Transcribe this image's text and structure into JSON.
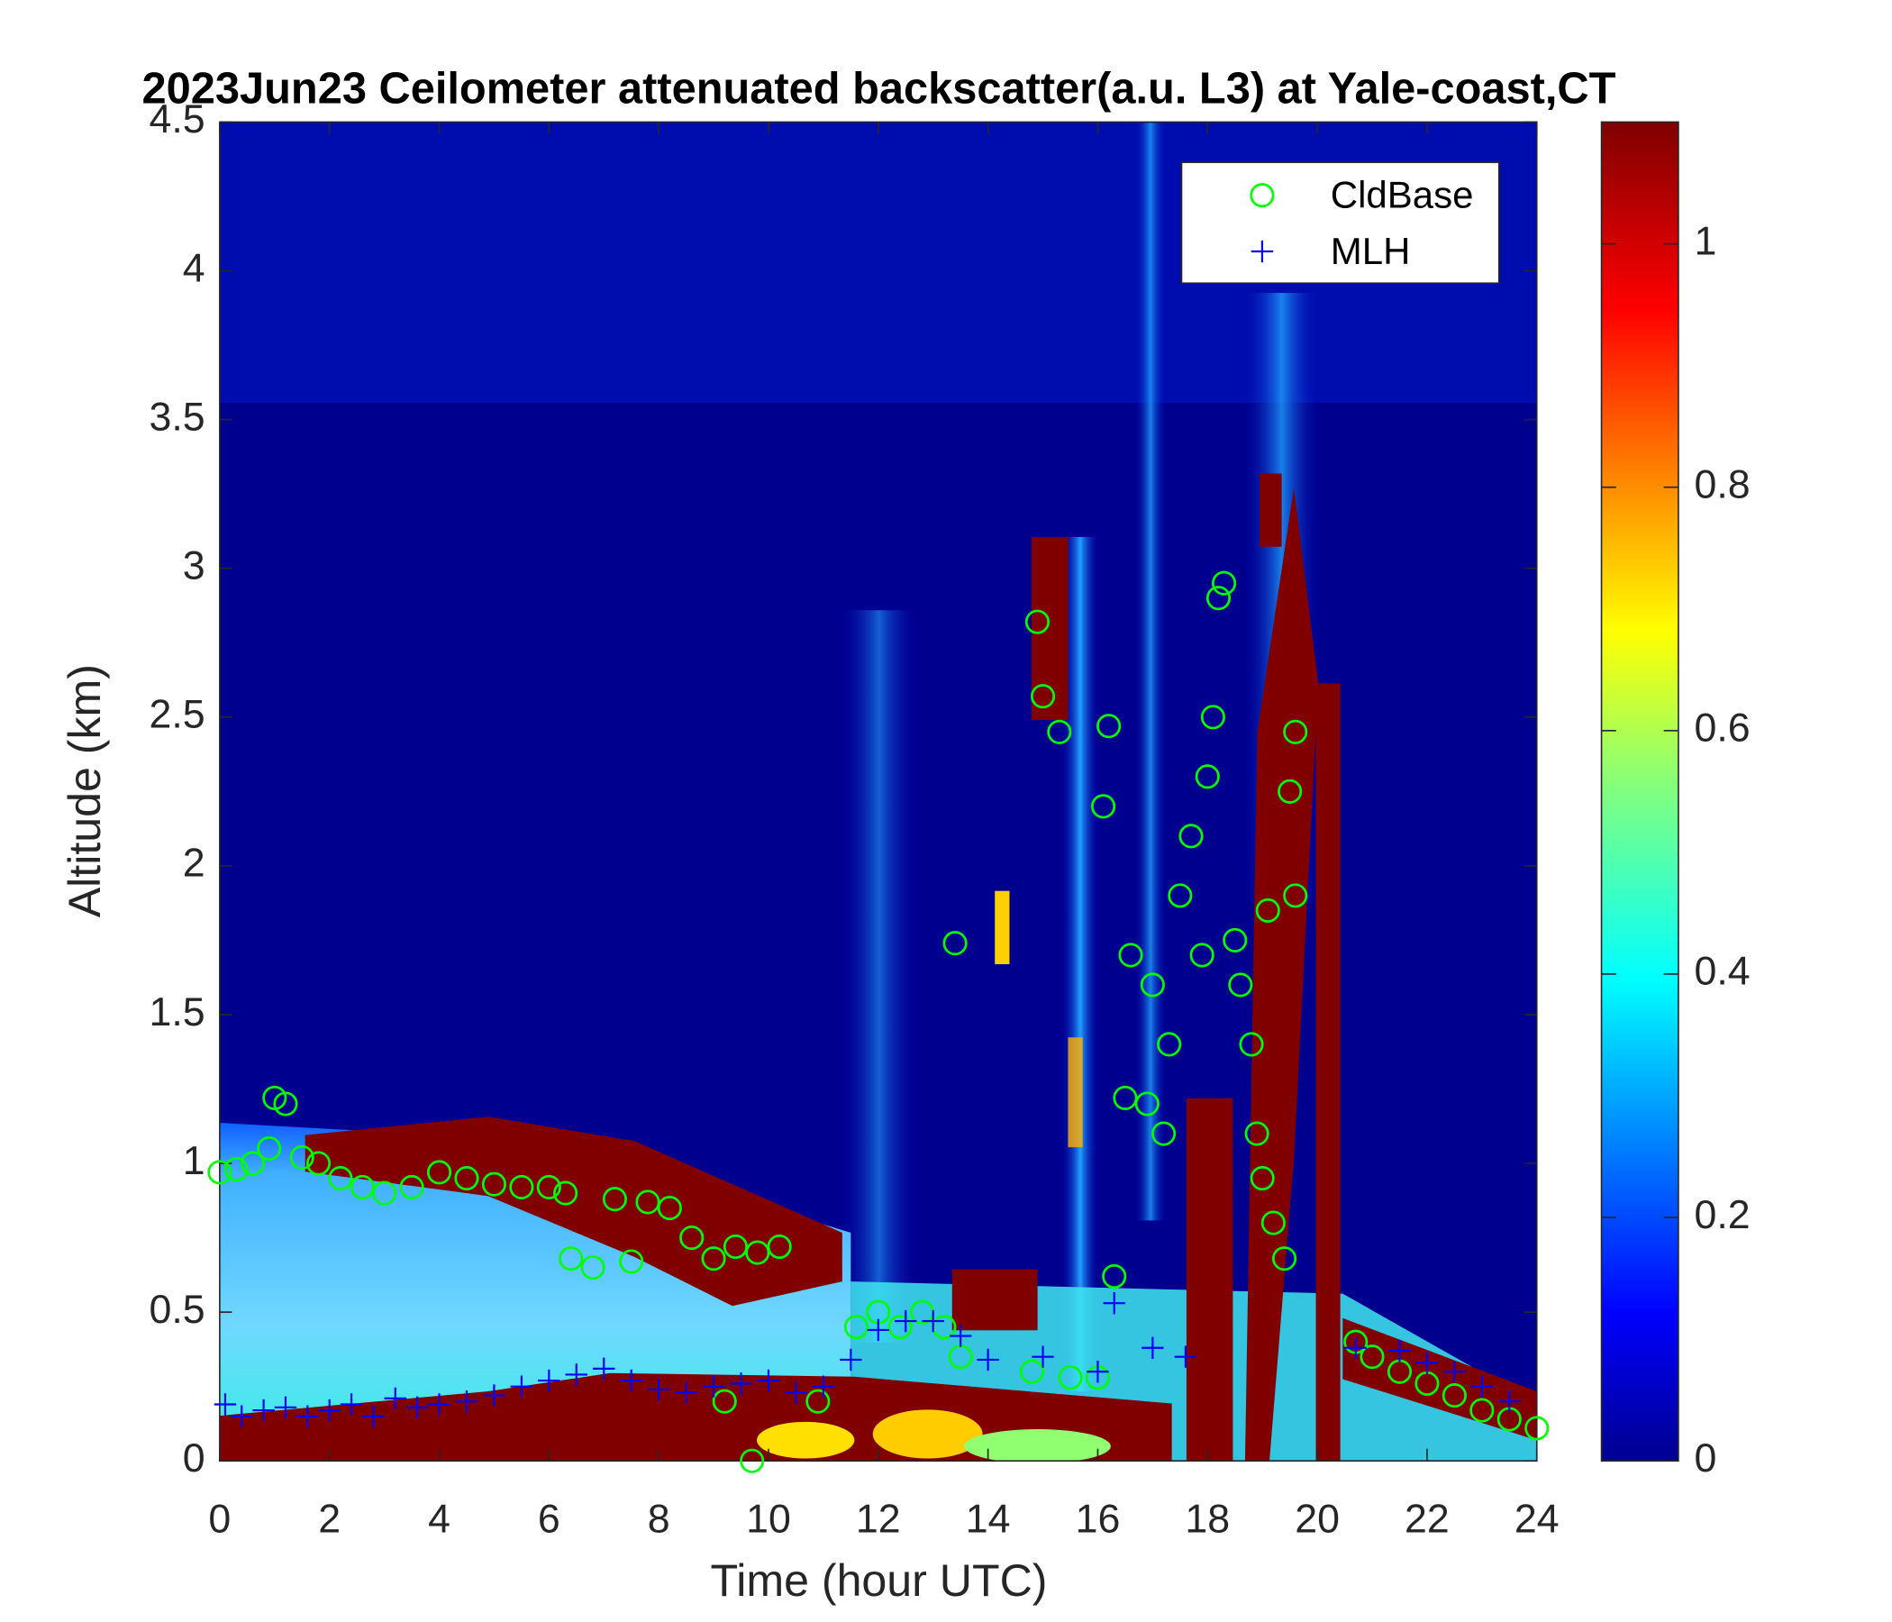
{
  "chart_data": {
    "type": "scatter",
    "title": "2023Jun23 Ceilometer attenuated backscatter(a.u. L3) at Yale-coast,CT",
    "xlabel": "Time (hour UTC)",
    "ylabel": "Altitude (km)",
    "xlim": [
      0,
      24
    ],
    "xticks": [
      0,
      2,
      4,
      6,
      8,
      10,
      12,
      14,
      16,
      18,
      20,
      22,
      24
    ],
    "ylim": [
      0,
      4.5
    ],
    "yticks": [
      0,
      0.5,
      1,
      1.5,
      2,
      2.5,
      3,
      3.5,
      4,
      4.5
    ],
    "legend": "northeast",
    "colorbar": {
      "clim": [
        0,
        1.1
      ],
      "ticks": [
        0,
        0.2,
        0.4,
        0.6,
        0.8,
        1
      ]
    },
    "series": [
      {
        "name": "CldBase",
        "color": "#00ff00",
        "marker": "circle",
        "x": [
          0,
          0.3,
          0.6,
          0.9,
          1.0,
          1.2,
          1.5,
          1.8,
          2.2,
          2.6,
          3,
          3.5,
          4,
          4.5,
          5,
          5.5,
          6,
          6.3,
          6.4,
          6.8,
          7.2,
          7.5,
          7.8,
          8.2,
          8.6,
          9,
          9.4,
          9.8,
          10.2,
          9.2,
          9.7,
          10.9,
          11.6,
          12,
          12.4,
          12.8,
          13.2,
          13.5,
          13.4,
          14.8,
          14.9,
          15.0,
          15.3,
          15.5,
          16.0,
          16.1,
          16.2,
          16.3,
          16.5,
          16.6,
          16.9,
          17.0,
          17.2,
          17.3,
          17.5,
          17.7,
          17.9,
          18.0,
          18.1,
          18.2,
          18.3,
          18.5,
          18.6,
          18.8,
          18.9,
          19.0,
          19.2,
          19.4,
          19.1,
          19.5,
          19.6,
          19.6,
          20.7,
          21,
          21.5,
          22,
          22.5,
          23,
          23.5,
          24
        ],
        "values": [
          0.97,
          0.98,
          1.0,
          1.05,
          1.22,
          1.2,
          1.02,
          1.0,
          0.95,
          0.92,
          0.9,
          0.92,
          0.97,
          0.95,
          0.93,
          0.92,
          0.92,
          0.9,
          0.68,
          0.65,
          0.88,
          0.67,
          0.87,
          0.85,
          0.75,
          0.68,
          0.72,
          0.7,
          0.72,
          0.2,
          0.0,
          0.2,
          0.45,
          0.5,
          0.45,
          0.5,
          0.45,
          0.35,
          1.74,
          0.3,
          2.82,
          2.57,
          2.45,
          0.28,
          0.28,
          2.2,
          2.47,
          0.62,
          1.22,
          1.7,
          1.2,
          1.6,
          1.1,
          1.4,
          1.9,
          2.1,
          1.7,
          2.3,
          2.5,
          2.9,
          2.95,
          1.75,
          1.6,
          1.4,
          1.1,
          0.95,
          0.8,
          0.68,
          1.85,
          2.25,
          2.45,
          1.9,
          0.4,
          0.35,
          0.3,
          0.26,
          0.22,
          0.17,
          0.14,
          0.11
        ]
      },
      {
        "name": "MLH",
        "color": "#0000ff",
        "marker": "plus",
        "x": [
          0.1,
          0.4,
          0.8,
          1.2,
          1.6,
          2.0,
          2.4,
          2.8,
          3.2,
          3.6,
          4.0,
          4.5,
          5.0,
          5.5,
          6.0,
          6.5,
          7.0,
          7.5,
          8.0,
          8.5,
          9.0,
          9.5,
          10.0,
          10.5,
          11.0,
          11.5,
          12.0,
          12.5,
          13.0,
          13.5,
          14.0,
          15.0,
          16.0,
          16.3,
          17.0,
          17.6,
          20.7,
          21.5,
          22,
          22.5,
          23,
          23.5
        ],
        "values": [
          0.19,
          0.15,
          0.17,
          0.18,
          0.15,
          0.17,
          0.19,
          0.15,
          0.21,
          0.18,
          0.19,
          0.2,
          0.22,
          0.25,
          0.27,
          0.29,
          0.31,
          0.27,
          0.24,
          0.23,
          0.25,
          0.26,
          0.27,
          0.23,
          0.25,
          0.34,
          0.44,
          0.47,
          0.47,
          0.42,
          0.34,
          0.35,
          0.3,
          0.53,
          0.38,
          0.35,
          0.38,
          0.37,
          0.33,
          0.3,
          0.25,
          0.2
        ]
      }
    ]
  }
}
